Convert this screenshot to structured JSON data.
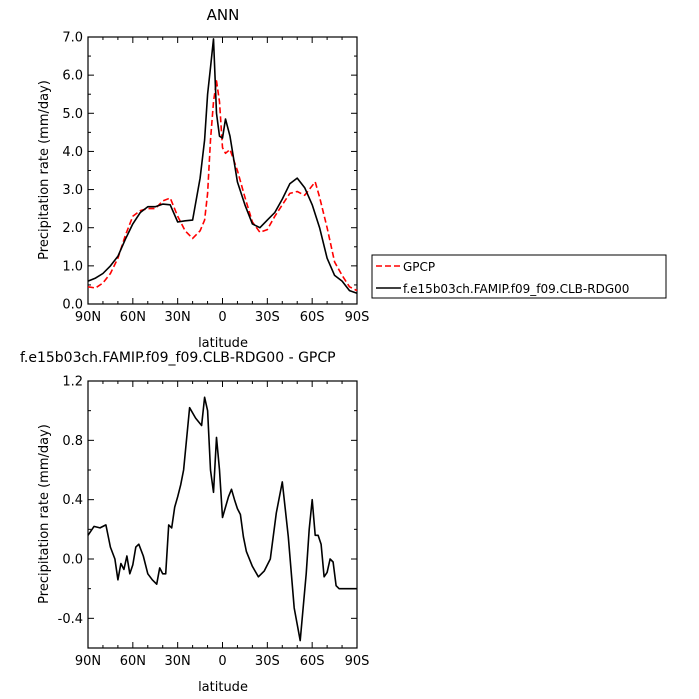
{
  "chart_data": [
    {
      "type": "line",
      "title": "ANN",
      "xlabel": "latitude",
      "ylabel": "Precipitation rate (mm/day)",
      "xlim": [
        -90,
        90
      ],
      "ylim": [
        0,
        7
      ],
      "x_tick_values": [
        -90,
        -60,
        -30,
        0,
        30,
        60,
        90
      ],
      "x_tick_labels": [
        "90N",
        "60N",
        "30N",
        "0",
        "30S",
        "60S",
        "90S"
      ],
      "y_tick_values": [
        0,
        1,
        2,
        3,
        4,
        5,
        6,
        7
      ],
      "y_tick_labels": [
        "0.0",
        "1.0",
        "2.0",
        "3.0",
        "4.0",
        "5.0",
        "6.0",
        "7.0"
      ],
      "legend_position": "right",
      "series": [
        {
          "name": "GPCP",
          "color": "#ff0000",
          "dashed": true,
          "x": [
            -90,
            -85,
            -80,
            -75,
            -70,
            -65,
            -60,
            -55,
            -50,
            -45,
            -40,
            -35,
            -30,
            -25,
            -20,
            -15,
            -12,
            -10,
            -8,
            -6,
            -4,
            -2,
            0,
            2,
            5,
            10,
            15,
            20,
            25,
            30,
            35,
            40,
            45,
            50,
            55,
            58,
            62,
            65,
            70,
            75,
            80,
            85,
            90
          ],
          "y": [
            0.45,
            0.42,
            0.55,
            0.8,
            1.2,
            1.8,
            2.3,
            2.45,
            2.5,
            2.5,
            2.7,
            2.78,
            2.3,
            1.92,
            1.72,
            1.92,
            2.2,
            2.9,
            4.3,
            5.3,
            5.85,
            5.3,
            4.1,
            3.95,
            4.05,
            3.5,
            2.8,
            2.15,
            1.88,
            1.95,
            2.3,
            2.6,
            2.9,
            2.95,
            2.85,
            3.0,
            3.2,
            2.8,
            2.0,
            1.1,
            0.75,
            0.45,
            0.35
          ]
        },
        {
          "name": "f.e15b03ch.FAMIP.f09_f09.CLB-RDG00",
          "color": "#000000",
          "dashed": false,
          "x": [
            -90,
            -85,
            -80,
            -75,
            -70,
            -65,
            -60,
            -55,
            -50,
            -45,
            -40,
            -35,
            -30,
            -25,
            -20,
            -15,
            -12,
            -10,
            -8,
            -6,
            -4,
            -2,
            0,
            2,
            5,
            10,
            15,
            20,
            25,
            30,
            35,
            40,
            45,
            50,
            55,
            60,
            65,
            70,
            75,
            80,
            85,
            90
          ],
          "y": [
            0.6,
            0.68,
            0.8,
            1.0,
            1.25,
            1.7,
            2.1,
            2.4,
            2.55,
            2.55,
            2.62,
            2.6,
            2.15,
            2.18,
            2.2,
            3.3,
            4.3,
            5.5,
            6.2,
            6.95,
            5.0,
            4.4,
            4.35,
            4.85,
            4.4,
            3.2,
            2.6,
            2.1,
            2.0,
            2.2,
            2.4,
            2.75,
            3.15,
            3.3,
            3.05,
            2.6,
            2.0,
            1.2,
            0.75,
            0.6,
            0.35,
            0.28
          ]
        }
      ]
    },
    {
      "type": "line",
      "title": "f.e15b03ch.FAMIP.f09_f09.CLB-RDG00 - GPCP",
      "xlabel": "latitude",
      "ylabel": "Precipitation rate (mm/day)",
      "xlim": [
        -90,
        90
      ],
      "ylim": [
        -0.6,
        1.2
      ],
      "x_tick_values": [
        -90,
        -60,
        -30,
        0,
        30,
        60,
        90
      ],
      "x_tick_labels": [
        "90N",
        "60N",
        "30N",
        "0",
        "30S",
        "60S",
        "90S"
      ],
      "y_tick_values": [
        -0.4,
        0.0,
        0.4,
        0.8,
        1.2
      ],
      "y_tick_labels": [
        "-0.4",
        "0.0",
        "0.4",
        "0.8",
        "1.2"
      ],
      "series": [
        {
          "name": "",
          "color": "#000000",
          "dashed": false,
          "x": [
            -90,
            -86,
            -82,
            -78,
            -75,
            -72,
            -70,
            -68,
            -66,
            -64,
            -62,
            -60,
            -58,
            -56,
            -53,
            -50,
            -47,
            -44,
            -42,
            -40,
            -38,
            -36,
            -34,
            -32,
            -30,
            -28,
            -26,
            -22,
            -18,
            -14,
            -12,
            -10,
            -8,
            -6,
            -4,
            -2,
            0,
            2,
            4,
            6,
            8,
            10,
            12,
            14,
            16,
            20,
            24,
            28,
            32,
            36,
            40,
            44,
            48,
            52,
            56,
            58,
            60,
            62,
            64,
            66,
            68,
            70,
            72,
            74,
            76,
            78,
            80,
            82,
            84,
            86,
            88,
            90
          ],
          "y": [
            0.16,
            0.22,
            0.21,
            0.23,
            0.08,
            0.0,
            -0.14,
            -0.03,
            -0.07,
            0.02,
            -0.1,
            -0.04,
            0.08,
            0.1,
            0.02,
            -0.1,
            -0.14,
            -0.17,
            -0.06,
            -0.1,
            -0.1,
            0.23,
            0.21,
            0.35,
            0.42,
            0.5,
            0.6,
            1.02,
            0.95,
            0.9,
            1.09,
            1.0,
            0.6,
            0.45,
            0.82,
            0.6,
            0.28,
            0.35,
            0.42,
            0.47,
            0.4,
            0.34,
            0.3,
            0.15,
            0.05,
            -0.05,
            -0.12,
            -0.08,
            0.0,
            0.31,
            0.52,
            0.15,
            -0.33,
            -0.55,
            -0.1,
            0.2,
            0.4,
            0.16,
            0.16,
            0.1,
            -0.12,
            -0.09,
            0.0,
            -0.02,
            -0.18,
            -0.2,
            -0.2,
            -0.2,
            -0.2,
            -0.2,
            -0.2,
            -0.2
          ]
        }
      ]
    }
  ]
}
